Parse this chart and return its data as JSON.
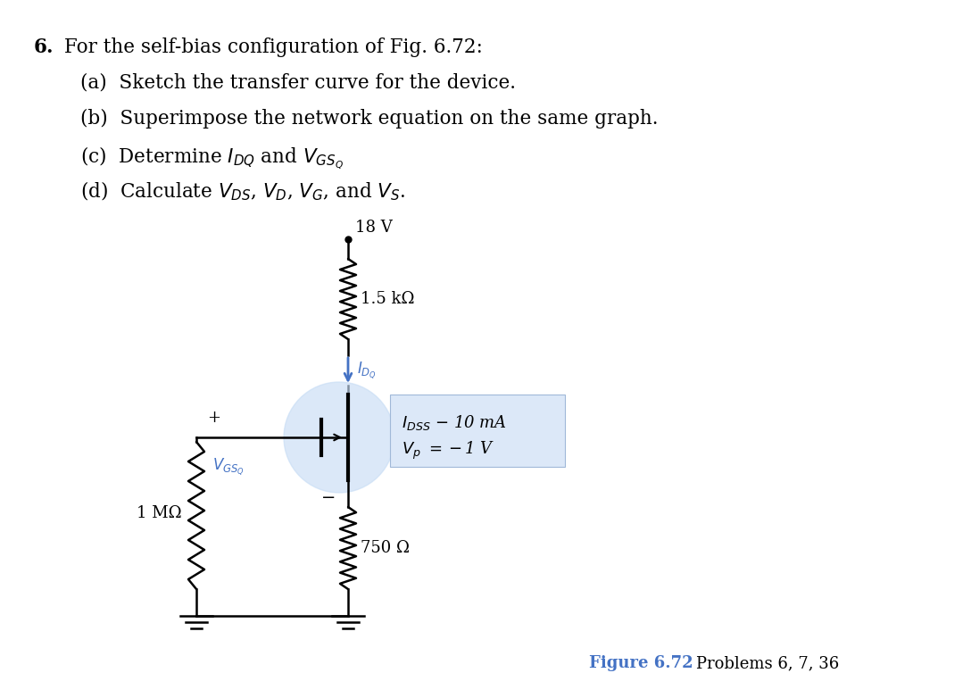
{
  "bg_color": "#ffffff",
  "text_color": "#000000",
  "blue_color": "#4472c4",
  "blue_light": "#c8ddf5",
  "vdd": "18 V",
  "rd": "1.5 kΩ",
  "rs": "750 Ω",
  "rg": "1 MΩ",
  "fig_caption": "Figure 6.72",
  "fig_problems": "Problems 6, 7, 36"
}
